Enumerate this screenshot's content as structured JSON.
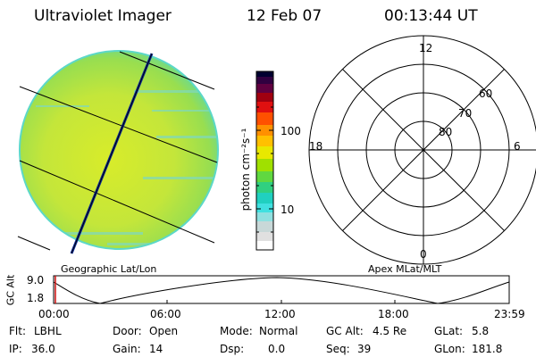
{
  "header": {
    "title": "Ultraviolet Imager",
    "date": "12 Feb 07",
    "time": "00:13:44 UT"
  },
  "geo_panel": {
    "label": "Geographic Lat/Lon"
  },
  "colorbar": {
    "unit_label": "photon cm⁻²s⁻¹",
    "ticks": [
      "100",
      "10"
    ],
    "scale": "log",
    "colors": [
      "#000030",
      "#a00010",
      "#e01010",
      "#ff7800",
      "#ffc000",
      "#e8e800",
      "#a0e000",
      "#40d040",
      "#20d0c0",
      "#40e0e0",
      "#d0d0d0",
      "#ffffff"
    ]
  },
  "polar_panel": {
    "label": "Apex MLat/MLT",
    "mlt_labels": {
      "top": "12",
      "left": "18",
      "right": "6",
      "bottom": "0"
    },
    "lat_labels": [
      "60",
      "70",
      "80"
    ]
  },
  "altitude_panel": {
    "y_axis_label": "GC Alt",
    "y_ticks": [
      "9.0",
      "1.8"
    ],
    "x_ticks": [
      "00:00",
      "06:00",
      "12:00",
      "18:00",
      "23:59"
    ]
  },
  "info": {
    "filter_label": "Flt:",
    "filter_value": "LBHL",
    "ip_label": "IP:",
    "ip_value": "36.0",
    "door_label": "Door:",
    "door_value": "Open",
    "gain_label": "Gain:",
    "gain_value": "14",
    "mode_label": "Mode:",
    "mode_value": "Normal",
    "dsp_label": "Dsp:",
    "dsp_value": "0.0",
    "gcalt_label": "GC Alt:",
    "gcalt_value": "4.5 Re",
    "seq_label": "Seq:",
    "seq_value": "39",
    "glat_label": "GLat:",
    "glat_value": "5.8",
    "glon_label": "GLon:",
    "glon_value": "181.8"
  }
}
